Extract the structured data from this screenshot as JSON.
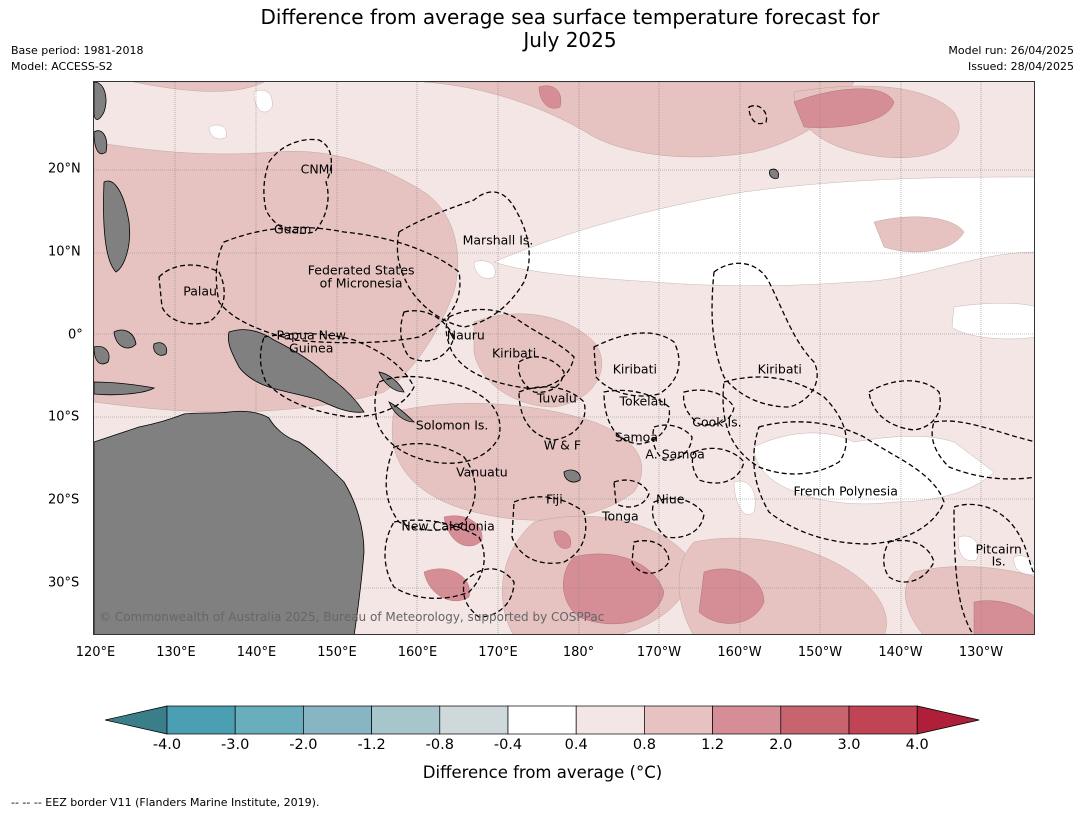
{
  "header": {
    "title": "Difference from average sea surface temperature forecast for",
    "title_line2": "July 2025",
    "base_period": "Base period: 1981-2018",
    "model": "Model: ACCESS-S2",
    "model_run": "Model run: 26/04/2025",
    "issued": "Issued: 28/04/2025"
  },
  "map": {
    "lon_ticks": [
      "120°E",
      "130°E",
      "140°E",
      "150°E",
      "160°E",
      "170°E",
      "180°",
      "170°W",
      "160°W",
      "150°W",
      "140°W",
      "130°W"
    ],
    "lat_ticks": [
      "20°N",
      "10°N",
      "0°",
      "10°S",
      "20°S",
      "30°S"
    ],
    "eez_labels": [
      {
        "text": "CNMI",
        "lon": 147.5,
        "lat": 20.0
      },
      {
        "text": "Guam",
        "lon": 144.5,
        "lat": 12.7
      },
      {
        "text": "Marshall Is.",
        "lon": 170.0,
        "lat": 11.4
      },
      {
        "text": "Federated States",
        "lon": 153.0,
        "lat": 7.8
      },
      {
        "text": "of Micronesia",
        "lon": 153.0,
        "lat": 6.2
      },
      {
        "text": "Palau",
        "lon": 133.0,
        "lat": 5.2
      },
      {
        "text": "Papua New",
        "lon": 146.8,
        "lat": 0.0
      },
      {
        "text": "Guinea",
        "lon": 146.8,
        "lat": -1.6
      },
      {
        "text": "Nauru",
        "lon": 166.0,
        "lat": 0.0
      },
      {
        "text": "Kiribati",
        "lon": 172.0,
        "lat": -2.2
      },
      {
        "text": "Kiribati",
        "lon": -173.0,
        "lat": -4.2
      },
      {
        "text": "Kiribati",
        "lon": -155.0,
        "lat": -4.2
      },
      {
        "text": "Tuvalu",
        "lon": 177.3,
        "lat": -7.7
      },
      {
        "text": "Tokelau",
        "lon": -172.0,
        "lat": -8.1
      },
      {
        "text": "Cook Is.",
        "lon": -162.8,
        "lat": -10.6
      },
      {
        "text": "Solomon Is.",
        "lon": 164.3,
        "lat": -11.0
      },
      {
        "text": "Samoa",
        "lon": -172.8,
        "lat": -12.4
      },
      {
        "text": "W & F",
        "lon": 178.0,
        "lat": -13.4
      },
      {
        "text": "A. Samoa",
        "lon": -168.0,
        "lat": -14.4
      },
      {
        "text": "Vanuatu",
        "lon": 168.0,
        "lat": -16.6
      },
      {
        "text": "French Polynesia",
        "lon": -146.8,
        "lat": -18.9
      },
      {
        "text": "Fiji",
        "lon": 177.0,
        "lat": -19.9
      },
      {
        "text": "Niue",
        "lon": -168.6,
        "lat": -19.9
      },
      {
        "text": "Tonga",
        "lon": -174.8,
        "lat": -22.0
      },
      {
        "text": "New Caledonia",
        "lon": 163.8,
        "lat": -23.1
      },
      {
        "text": "Pitcairn",
        "lon": -127.8,
        "lat": -25.9
      },
      {
        "text": "Is.",
        "lon": -127.8,
        "lat": -27.4
      }
    ],
    "copyright": "© Commonwealth of Australia 2025, Bureau of Meteorology, supported by COSPPac",
    "colors": {
      "land": "#808080",
      "anomaly_0_4_to_0_8": "#f4e6e5",
      "anomaly_0_8_to_1_2": "#e6c3c0",
      "anomaly_1_2_to_2_0": "#d58e96",
      "anomaly_2_0_to_3_0": "#c7646e",
      "near_zero": "#ffffff"
    }
  },
  "colorbar": {
    "bins": [
      {
        "color": "#3a7e89"
      },
      {
        "color": "#4aa0b2"
      },
      {
        "color": "#6aaebd"
      },
      {
        "color": "#88b5c2"
      },
      {
        "color": "#a7c6cb"
      },
      {
        "color": "#cfd8da"
      },
      {
        "color": "#ffffff"
      },
      {
        "color": "#f4e6e5"
      },
      {
        "color": "#e6c3c0"
      },
      {
        "color": "#d58e96"
      },
      {
        "color": "#c7646e"
      },
      {
        "color": "#c14454"
      },
      {
        "color": "#b01f3a"
      }
    ],
    "tick_labels": [
      "-4.0",
      "-3.0",
      "-2.0",
      "-1.2",
      "-0.8",
      "-0.4",
      "0.4",
      "0.8",
      "1.2",
      "2.0",
      "3.0",
      "4.0"
    ],
    "title": "Difference from average (°C)"
  },
  "footnote": "--  --  -- EEZ border V11 (Flanders Marine Institute, 2019)."
}
